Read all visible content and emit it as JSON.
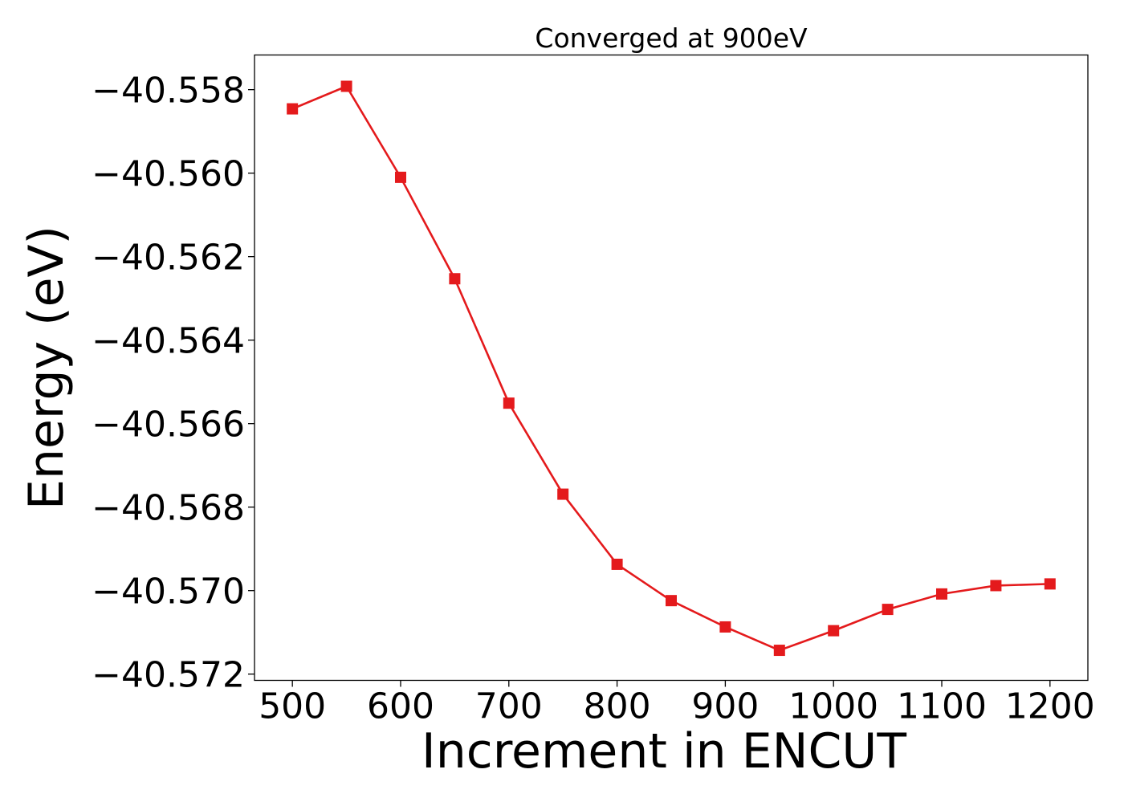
{
  "chart_data": {
    "type": "line",
    "title": "Converged at 900eV",
    "xlabel": "Increment in ENCUT",
    "ylabel": "Energy (eV)",
    "x": [
      500,
      550,
      600,
      650,
      700,
      750,
      800,
      850,
      900,
      950,
      1000,
      1050,
      1100,
      1150,
      1200
    ],
    "series": [
      {
        "values": [
          -40.55846,
          -40.55792,
          -40.5601,
          -40.56253,
          -40.56551,
          -40.56769,
          -40.56937,
          -40.57024,
          -40.57087,
          -40.57143,
          -40.57096,
          -40.57045,
          -40.57008,
          -40.56988,
          -40.56984
        ],
        "color": "#e41a1c",
        "marker": "square"
      }
    ],
    "xlim": [
      465,
      1235
    ],
    "ylim": [
      -40.57215,
      -40.55717
    ],
    "xticks": [
      500,
      600,
      700,
      800,
      900,
      1000,
      1100,
      1200
    ],
    "xtick_labels": [
      "500",
      "600",
      "700",
      "800",
      "900",
      "1000",
      "1100",
      "1200"
    ],
    "yticks": [
      -40.558,
      -40.56,
      -40.562,
      -40.564,
      -40.566,
      -40.568,
      -40.57,
      -40.572
    ],
    "ytick_labels": [
      "−40.558",
      "−40.560",
      "−40.562",
      "−40.564",
      "−40.566",
      "−40.568",
      "−40.570",
      "−40.572"
    ],
    "grid": false,
    "legend": "none"
  }
}
